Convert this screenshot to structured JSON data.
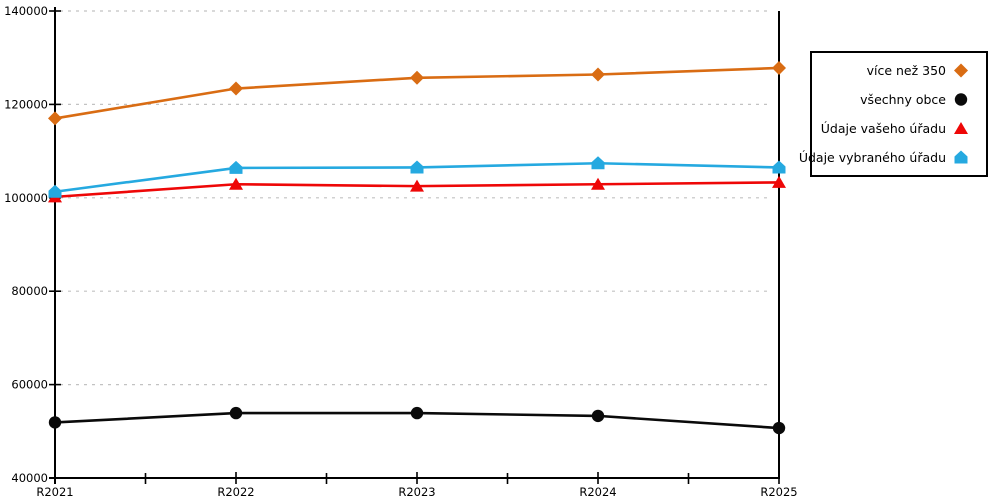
{
  "chart_data": {
    "type": "line",
    "title": "",
    "xlabel": "",
    "ylabel": "",
    "x": [
      "R2021",
      "R2022",
      "R2023",
      "R2024",
      "R2025"
    ],
    "series": [
      {
        "name": "více než 350",
        "marker": "diamond",
        "color": "#d96c13",
        "values": [
          117000,
          123400,
          125700,
          126400,
          127800
        ]
      },
      {
        "name": "všechny obce",
        "marker": "circle",
        "color": "#0a0a0a",
        "values": [
          51900,
          53900,
          53900,
          53300,
          50700
        ]
      },
      {
        "name": "Údaje vašeho úřadu",
        "marker": "triangle",
        "color": "#ee0707",
        "values": [
          100200,
          102900,
          102500,
          102900,
          103300
        ]
      },
      {
        "name": "Údaje vybraného úřadu",
        "marker": "pentagon",
        "color": "#25a9e0",
        "values": [
          101300,
          106400,
          106500,
          107400,
          106500
        ]
      }
    ],
    "ylim": [
      40000,
      140000
    ],
    "yticks": [
      40000,
      60000,
      80000,
      100000,
      120000,
      140000
    ],
    "grid": "horizontal-dashed",
    "grid_color": "#c2c2c2",
    "axis_color": "#000000",
    "legend_position": "right-outside"
  }
}
